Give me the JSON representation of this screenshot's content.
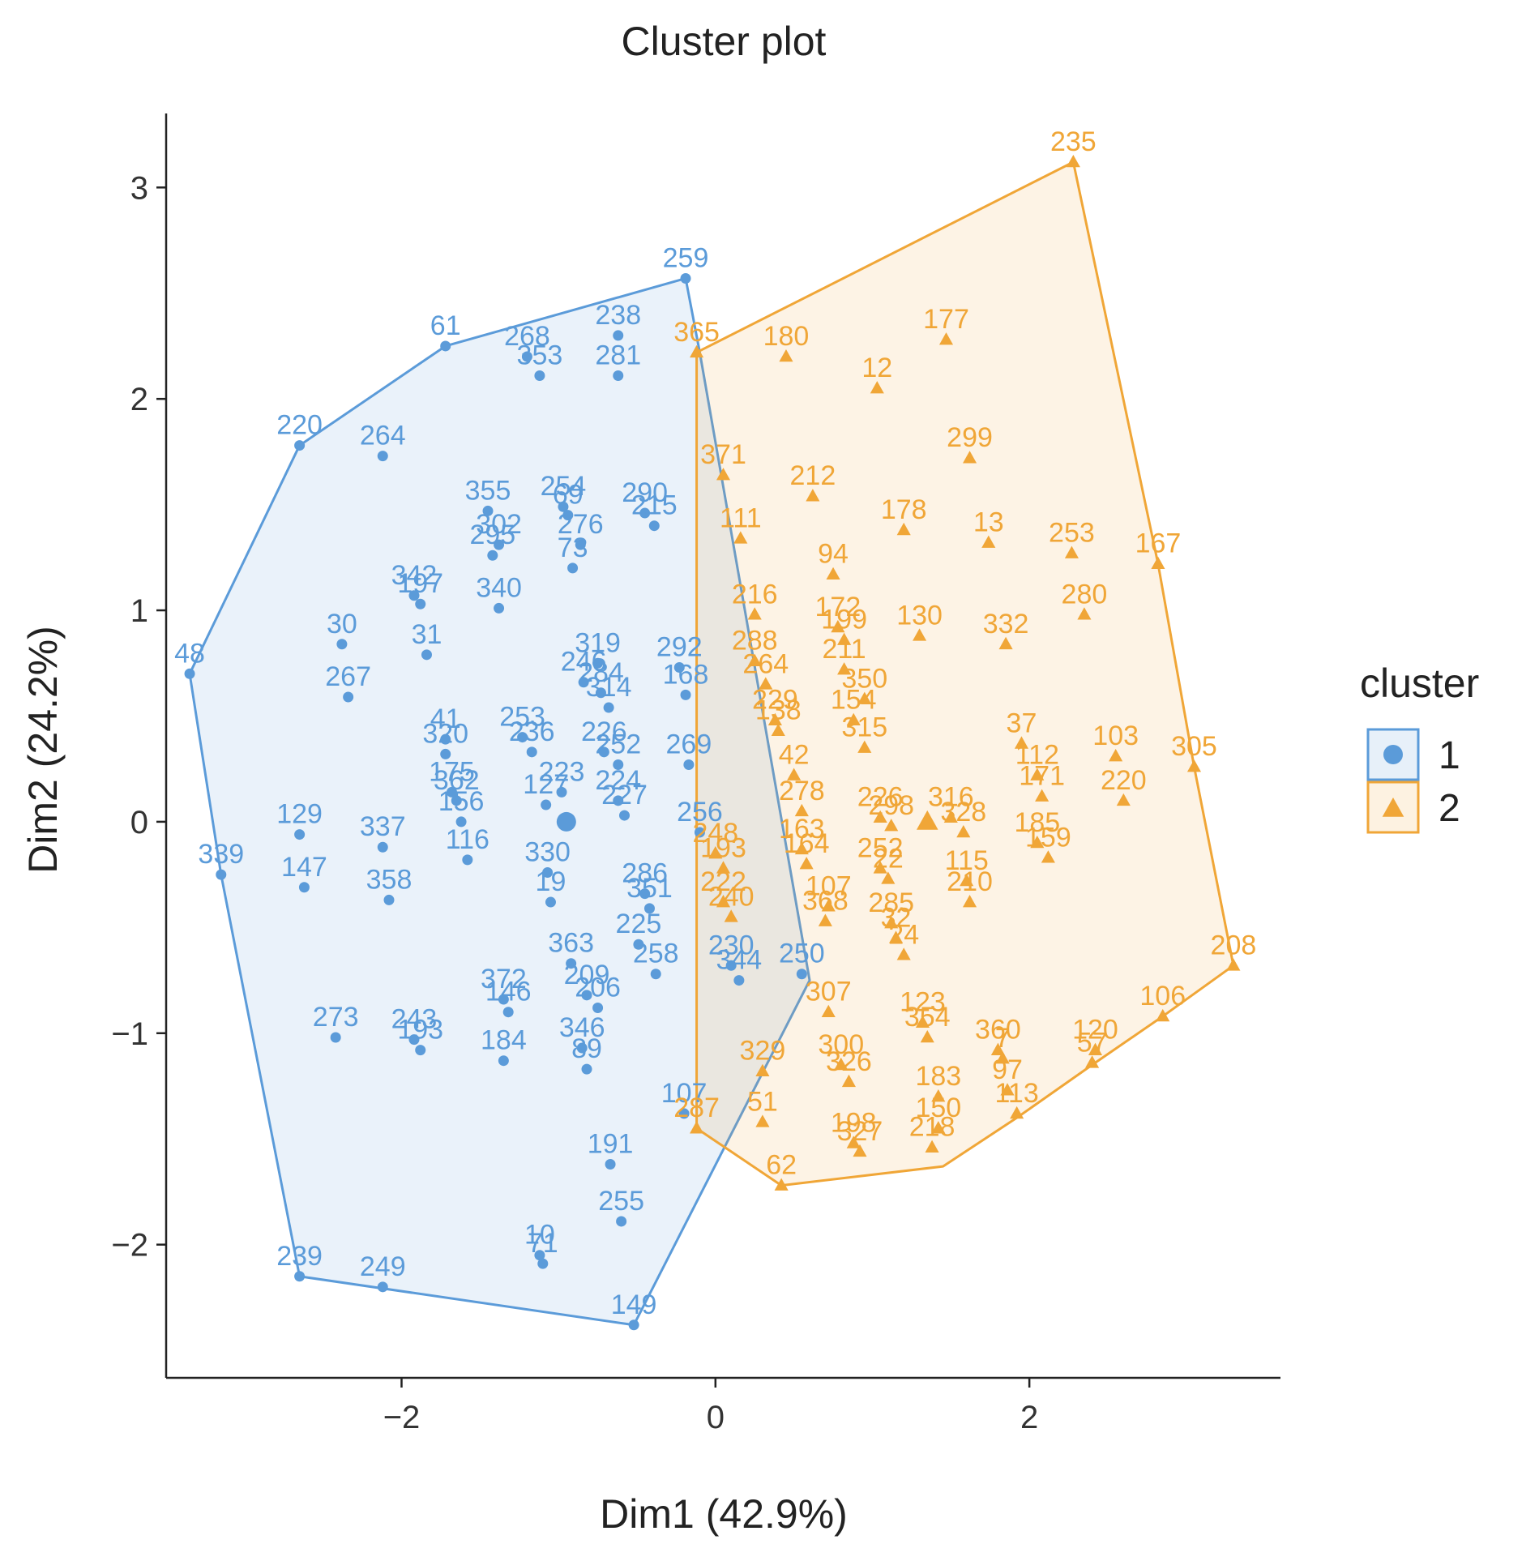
{
  "chart_data": {
    "type": "scatter",
    "title": "Cluster plot",
    "xlabel": "Dim1 (42.9%)",
    "ylabel": "Dim2 (24.2%)",
    "xlim": [
      -3.5,
      3.6
    ],
    "ylim": [
      -2.63,
      3.35
    ],
    "xticks": [
      -2,
      0,
      2
    ],
    "yticks": [
      -2,
      -1,
      0,
      1,
      2,
      3
    ],
    "xtick_labels": [
      "−2",
      "0",
      "2"
    ],
    "ytick_labels": [
      "−2",
      "−1",
      "0",
      "1",
      "2",
      "3"
    ],
    "legend": {
      "title": "cluster",
      "position": "right",
      "entries": [
        {
          "label": "1",
          "shape": "circle",
          "color": "#5b9bd9"
        },
        {
          "label": "2",
          "shape": "triangle",
          "color": "#f0a637"
        }
      ]
    },
    "series": [
      {
        "name": "1",
        "color": "#5b9bd9",
        "shape": "circle",
        "centroid": [
          -0.95,
          0.0
        ],
        "hull": [
          [
            -0.19,
            2.57
          ],
          [
            -0.1,
            2.22
          ],
          [
            0.6,
            -0.75
          ],
          [
            -0.52,
            -2.38
          ],
          [
            -2.65,
            -2.15
          ],
          [
            -3.15,
            -0.25
          ],
          [
            -3.35,
            0.7
          ],
          [
            -2.65,
            1.78
          ],
          [
            -1.72,
            2.25
          ]
        ],
        "points": [
          {
            "id": "259",
            "x": -0.19,
            "y": 2.57
          },
          {
            "id": "61",
            "x": -1.72,
            "y": 2.25
          },
          {
            "id": "268",
            "x": -1.2,
            "y": 2.2
          },
          {
            "id": "353",
            "x": -1.12,
            "y": 2.11
          },
          {
            "id": "238",
            "x": -0.62,
            "y": 2.3
          },
          {
            "id": "281",
            "x": -0.62,
            "y": 2.11
          },
          {
            "id": "220",
            "x": -2.65,
            "y": 1.78
          },
          {
            "id": "264",
            "x": -2.12,
            "y": 1.73
          },
          {
            "id": "355",
            "x": -1.45,
            "y": 1.47
          },
          {
            "id": "254",
            "x": -0.97,
            "y": 1.49
          },
          {
            "id": "69",
            "x": -0.94,
            "y": 1.45
          },
          {
            "id": "290",
            "x": -0.45,
            "y": 1.46
          },
          {
            "id": "215",
            "x": -0.39,
            "y": 1.4
          },
          {
            "id": "302",
            "x": -1.38,
            "y": 1.31
          },
          {
            "id": "295",
            "x": -1.42,
            "y": 1.26
          },
          {
            "id": "276",
            "x": -0.86,
            "y": 1.31
          },
          {
            "id": "342",
            "x": -1.92,
            "y": 1.07
          },
          {
            "id": "197",
            "x": -1.88,
            "y": 1.03
          },
          {
            "id": "340",
            "x": -1.38,
            "y": 1.01
          },
          {
            "id": "73",
            "x": -0.91,
            "y": 1.2
          },
          {
            "id": "30",
            "x": -2.38,
            "y": 0.84
          },
          {
            "id": "31",
            "x": -1.84,
            "y": 0.79
          },
          {
            "id": "48",
            "x": -3.35,
            "y": 0.7
          },
          {
            "id": "319",
            "x": -0.75,
            "y": 0.75
          },
          {
            "id": "292",
            "x": -0.23,
            "y": 0.73
          },
          {
            "id": "267",
            "x": -2.34,
            "y": 0.59
          },
          {
            "id": "246",
            "x": -0.84,
            "y": 0.66
          },
          {
            "id": "284",
            "x": -0.73,
            "y": 0.61
          },
          {
            "id": "314",
            "x": -0.68,
            "y": 0.54
          },
          {
            "id": "168",
            "x": -0.19,
            "y": 0.6
          },
          {
            "id": "41",
            "x": -1.72,
            "y": 0.39
          },
          {
            "id": "320",
            "x": -1.72,
            "y": 0.32
          },
          {
            "id": "253",
            "x": -1.23,
            "y": 0.4
          },
          {
            "id": "236",
            "x": -1.17,
            "y": 0.33
          },
          {
            "id": "226",
            "x": -0.71,
            "y": 0.33
          },
          {
            "id": "252",
            "x": -0.62,
            "y": 0.27
          },
          {
            "id": "269",
            "x": -0.17,
            "y": 0.27
          },
          {
            "id": "175",
            "x": -1.68,
            "y": 0.14
          },
          {
            "id": "362",
            "x": -1.65,
            "y": 0.1
          },
          {
            "id": "127",
            "x": -1.08,
            "y": 0.08
          },
          {
            "id": "223",
            "x": -0.98,
            "y": 0.14
          },
          {
            "id": "224",
            "x": -0.62,
            "y": 0.1
          },
          {
            "id": "227",
            "x": -0.58,
            "y": 0.03
          },
          {
            "id": "129",
            "x": -2.65,
            "y": -0.06
          },
          {
            "id": "337",
            "x": -2.12,
            "y": -0.12
          },
          {
            "id": "156",
            "x": -1.62,
            "y": 0.0
          },
          {
            "id": "116",
            "x": -1.58,
            "y": -0.18
          },
          {
            "id": "256",
            "x": -0.1,
            "y": -0.05
          },
          {
            "id": "330",
            "x": -1.07,
            "y": -0.24
          },
          {
            "id": "339",
            "x": -3.15,
            "y": -0.25
          },
          {
            "id": "147",
            "x": -2.62,
            "y": -0.31
          },
          {
            "id": "358",
            "x": -2.08,
            "y": -0.37
          },
          {
            "id": "19",
            "x": -1.05,
            "y": -0.38
          },
          {
            "id": "286",
            "x": -0.45,
            "y": -0.34
          },
          {
            "id": "351",
            "x": -0.42,
            "y": -0.41
          },
          {
            "id": "363",
            "x": -0.92,
            "y": -0.67
          },
          {
            "id": "225",
            "x": -0.49,
            "y": -0.58
          },
          {
            "id": "258",
            "x": -0.38,
            "y": -0.72
          },
          {
            "id": "372",
            "x": -1.35,
            "y": -0.84
          },
          {
            "id": "146",
            "x": -1.32,
            "y": -0.9
          },
          {
            "id": "209",
            "x": -0.82,
            "y": -0.82
          },
          {
            "id": "206",
            "x": -0.75,
            "y": -0.88
          },
          {
            "id": "273",
            "x": -2.42,
            "y": -1.02
          },
          {
            "id": "243",
            "x": -1.92,
            "y": -1.03
          },
          {
            "id": "193",
            "x": -1.88,
            "y": -1.08
          },
          {
            "id": "184",
            "x": -1.35,
            "y": -1.13
          },
          {
            "id": "346",
            "x": -0.85,
            "y": -1.07
          },
          {
            "id": "89",
            "x": -0.82,
            "y": -1.17
          },
          {
            "id": "107",
            "x": -0.2,
            "y": -1.38
          },
          {
            "id": "191",
            "x": -0.67,
            "y": -1.62
          },
          {
            "id": "255",
            "x": -0.6,
            "y": -1.89
          },
          {
            "id": "10",
            "x": -1.12,
            "y": -2.05
          },
          {
            "id": "71",
            "x": -1.1,
            "y": -2.09
          },
          {
            "id": "239",
            "x": -2.65,
            "y": -2.15
          },
          {
            "id": "249",
            "x": -2.12,
            "y": -2.2
          },
          {
            "id": "149",
            "x": -0.52,
            "y": -2.38
          },
          {
            "id": "250",
            "x": 0.55,
            "y": -0.72
          },
          {
            "id": "230",
            "x": 0.1,
            "y": -0.68
          },
          {
            "id": "344",
            "x": 0.15,
            "y": -0.75
          }
        ]
      },
      {
        "name": "2",
        "color": "#f0a637",
        "shape": "triangle",
        "centroid": [
          1.35,
          0.0
        ],
        "hull": [
          [
            2.28,
            3.12
          ],
          [
            2.82,
            1.22
          ],
          [
            3.05,
            0.26
          ],
          [
            3.3,
            -0.68
          ],
          [
            2.85,
            -0.92
          ],
          [
            2.4,
            -1.15
          ],
          [
            1.92,
            -1.4
          ],
          [
            1.45,
            -1.63
          ],
          [
            0.42,
            -1.72
          ],
          [
            -0.12,
            -1.45
          ],
          [
            -0.12,
            2.22
          ]
        ],
        "points": [
          {
            "id": "235",
            "x": 2.28,
            "y": 3.12
          },
          {
            "id": "365",
            "x": -0.12,
            "y": 2.22
          },
          {
            "id": "180",
            "x": 0.45,
            "y": 2.2
          },
          {
            "id": "177",
            "x": 1.47,
            "y": 2.28
          },
          {
            "id": "12",
            "x": 1.03,
            "y": 2.05
          },
          {
            "id": "371",
            "x": 0.05,
            "y": 1.64
          },
          {
            "id": "212",
            "x": 0.62,
            "y": 1.54
          },
          {
            "id": "299",
            "x": 1.62,
            "y": 1.72
          },
          {
            "id": "111",
            "x": 0.16,
            "y": 1.34
          },
          {
            "id": "178",
            "x": 1.2,
            "y": 1.38
          },
          {
            "id": "13",
            "x": 1.74,
            "y": 1.32
          },
          {
            "id": "253",
            "x": 2.27,
            "y": 1.27
          },
          {
            "id": "167",
            "x": 2.82,
            "y": 1.22
          },
          {
            "id": "94",
            "x": 0.75,
            "y": 1.17
          },
          {
            "id": "216",
            "x": 0.25,
            "y": 0.98
          },
          {
            "id": "172",
            "x": 0.78,
            "y": 0.92
          },
          {
            "id": "199",
            "x": 0.82,
            "y": 0.86
          },
          {
            "id": "280",
            "x": 2.35,
            "y": 0.98
          },
          {
            "id": "130",
            "x": 1.3,
            "y": 0.88
          },
          {
            "id": "332",
            "x": 1.85,
            "y": 0.84
          },
          {
            "id": "288",
            "x": 0.25,
            "y": 0.76
          },
          {
            "id": "264",
            "x": 0.32,
            "y": 0.65
          },
          {
            "id": "211",
            "x": 0.82,
            "y": 0.72
          },
          {
            "id": "350",
            "x": 0.95,
            "y": 0.58
          },
          {
            "id": "229",
            "x": 0.38,
            "y": 0.48
          },
          {
            "id": "138",
            "x": 0.4,
            "y": 0.43
          },
          {
            "id": "154",
            "x": 0.88,
            "y": 0.48
          },
          {
            "id": "315",
            "x": 0.95,
            "y": 0.35
          },
          {
            "id": "37",
            "x": 1.95,
            "y": 0.37
          },
          {
            "id": "103",
            "x": 2.55,
            "y": 0.31
          },
          {
            "id": "305",
            "x": 3.05,
            "y": 0.26
          },
          {
            "id": "42",
            "x": 0.5,
            "y": 0.22
          },
          {
            "id": "112",
            "x": 2.05,
            "y": 0.22
          },
          {
            "id": "171",
            "x": 2.08,
            "y": 0.12
          },
          {
            "id": "220",
            "x": 2.6,
            "y": 0.1
          },
          {
            "id": "278",
            "x": 0.55,
            "y": 0.05
          },
          {
            "id": "226",
            "x": 1.05,
            "y": 0.02
          },
          {
            "id": "298",
            "x": 1.12,
            "y": -0.02
          },
          {
            "id": "316",
            "x": 1.5,
            "y": 0.02
          },
          {
            "id": "328",
            "x": 1.58,
            "y": -0.05
          },
          {
            "id": "185",
            "x": 2.05,
            "y": -0.1
          },
          {
            "id": "159",
            "x": 2.12,
            "y": -0.17
          },
          {
            "id": "163",
            "x": 0.55,
            "y": -0.13
          },
          {
            "id": "164",
            "x": 0.58,
            "y": -0.2
          },
          {
            "id": "252",
            "x": 1.05,
            "y": -0.22
          },
          {
            "id": "22",
            "x": 1.1,
            "y": -0.27
          },
          {
            "id": "115",
            "x": 1.6,
            "y": -0.28
          },
          {
            "id": "210",
            "x": 1.62,
            "y": -0.38
          },
          {
            "id": "107",
            "x": 0.72,
            "y": -0.4
          },
          {
            "id": "368",
            "x": 0.7,
            "y": -0.47
          },
          {
            "id": "285",
            "x": 1.12,
            "y": -0.48
          },
          {
            "id": "32",
            "x": 1.15,
            "y": -0.55
          },
          {
            "id": "24",
            "x": 1.2,
            "y": -0.63
          },
          {
            "id": "307",
            "x": 0.72,
            "y": -0.9
          },
          {
            "id": "123",
            "x": 1.32,
            "y": -0.95
          },
          {
            "id": "354",
            "x": 1.35,
            "y": -1.02
          },
          {
            "id": "360",
            "x": 1.8,
            "y": -1.08
          },
          {
            "id": "7",
            "x": 1.83,
            "y": -1.12
          },
          {
            "id": "329",
            "x": 0.3,
            "y": -1.18
          },
          {
            "id": "300",
            "x": 0.8,
            "y": -1.15
          },
          {
            "id": "326",
            "x": 0.85,
            "y": -1.23
          },
          {
            "id": "183",
            "x": 1.42,
            "y": -1.3
          },
          {
            "id": "97",
            "x": 1.86,
            "y": -1.27
          },
          {
            "id": "113",
            "x": 1.92,
            "y": -1.38
          },
          {
            "id": "120",
            "x": 2.42,
            "y": -1.08
          },
          {
            "id": "57",
            "x": 2.4,
            "y": -1.14
          },
          {
            "id": "106",
            "x": 2.85,
            "y": -0.92
          },
          {
            "id": "208",
            "x": 3.3,
            "y": -0.68
          },
          {
            "id": "51",
            "x": 0.3,
            "y": -1.42
          },
          {
            "id": "287",
            "x": -0.12,
            "y": -1.45
          },
          {
            "id": "150",
            "x": 1.42,
            "y": -1.45
          },
          {
            "id": "198",
            "x": 0.88,
            "y": -1.52
          },
          {
            "id": "327",
            "x": 0.92,
            "y": -1.56
          },
          {
            "id": "218",
            "x": 1.38,
            "y": -1.54
          },
          {
            "id": "62",
            "x": 0.42,
            "y": -1.72
          },
          {
            "id": "248",
            "x": 0.0,
            "y": -0.15
          },
          {
            "id": "193",
            "x": 0.05,
            "y": -0.22
          },
          {
            "id": "222",
            "x": 0.05,
            "y": -0.38
          },
          {
            "id": "240",
            "x": 0.1,
            "y": -0.45
          }
        ]
      }
    ]
  }
}
